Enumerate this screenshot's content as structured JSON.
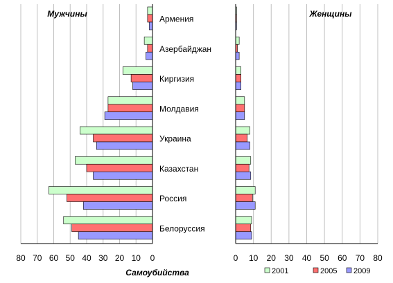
{
  "chart_data": {
    "type": "bar",
    "orientation": "horizontal",
    "layout": "back-to-back population-pyramid style (two panels)",
    "xlabel": "Самоубийства",
    "categories": [
      "Армения",
      "Азербайджан",
      "Киргизия",
      "Молдавия",
      "Украина",
      "Казахстан",
      "Россия",
      "Белоруссия"
    ],
    "legend": [
      "2001",
      "2005",
      "2009"
    ],
    "legend_position": "bottom-right",
    "grid": true,
    "panels": [
      {
        "title": "Мужчины",
        "side": "left",
        "xlim": [
          0,
          80
        ],
        "ticks": [
          "80",
          "70",
          "60",
          "50",
          "40",
          "30",
          "20",
          "10",
          "0"
        ],
        "series": [
          {
            "name": "2001",
            "color": "#ccffcc",
            "values": [
              3,
              5,
              18,
              27,
              44,
              47,
              63,
              54
            ]
          },
          {
            "name": "2005",
            "color": "#ff7070",
            "values": [
              3,
              3,
              13,
              27,
              36,
              40,
              52,
              49
            ]
          },
          {
            "name": "2009",
            "color": "#9999ff",
            "values": [
              2,
              4,
              12,
              29,
              34,
              36,
              42,
              45
            ]
          }
        ]
      },
      {
        "title": "Женщины",
        "side": "right",
        "xlim": [
          0,
          80
        ],
        "ticks": [
          "0",
          "10",
          "20",
          "30",
          "40",
          "50",
          "60",
          "70",
          "80"
        ],
        "series": [
          {
            "name": "2001",
            "color": "#ccffcc",
            "values": [
              0.5,
              2,
              3,
              5,
              8,
              8.5,
              11,
              9
            ]
          },
          {
            "name": "2005",
            "color": "#ff7070",
            "values": [
              0.5,
              1,
              3,
              5,
              6.5,
              7.5,
              9.5,
              8.5
            ]
          },
          {
            "name": "2009",
            "color": "#9999ff",
            "values": [
              0.5,
              2,
              3,
              5,
              8,
              8.5,
              11,
              9
            ]
          }
        ]
      }
    ]
  }
}
